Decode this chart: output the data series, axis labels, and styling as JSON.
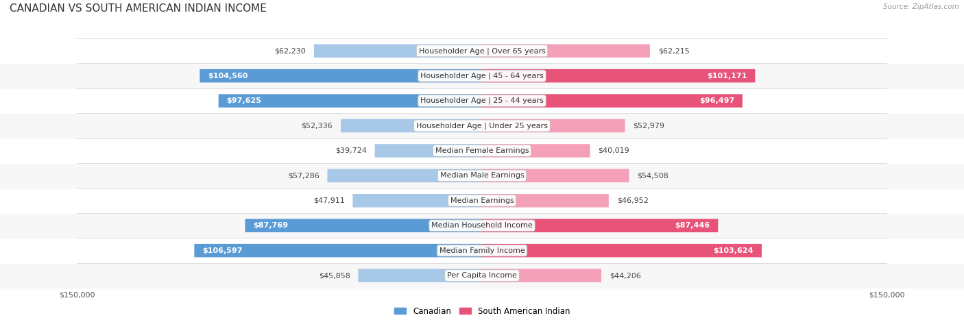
{
  "title": "CANADIAN VS SOUTH AMERICAN INDIAN INCOME",
  "source": "Source: ZipAtlas.com",
  "categories": [
    "Per Capita Income",
    "Median Family Income",
    "Median Household Income",
    "Median Earnings",
    "Median Male Earnings",
    "Median Female Earnings",
    "Householder Age | Under 25 years",
    "Householder Age | 25 - 44 years",
    "Householder Age | 45 - 64 years",
    "Householder Age | Over 65 years"
  ],
  "canadian_values": [
    45858,
    106597,
    87769,
    47911,
    57286,
    39724,
    52336,
    97625,
    104560,
    62230
  ],
  "south_american_values": [
    44206,
    103624,
    87446,
    46952,
    54508,
    40019,
    52979,
    96497,
    101171,
    62215
  ],
  "canadian_labels": [
    "$45,858",
    "$106,597",
    "$87,769",
    "$47,911",
    "$57,286",
    "$39,724",
    "$52,336",
    "$97,625",
    "$104,560",
    "$62,230"
  ],
  "south_american_labels": [
    "$44,206",
    "$103,624",
    "$87,446",
    "$46,952",
    "$54,508",
    "$40,019",
    "$52,979",
    "$96,497",
    "$101,171",
    "$62,215"
  ],
  "canadian_color_light": "#a8c8e8",
  "canadian_color_dark": "#5b9bd5",
  "south_american_color_light": "#f4a0b8",
  "south_american_color_dark": "#e8537a",
  "max_value": 150000,
  "bg_color": "#ffffff",
  "legend_canadian": "Canadian",
  "legend_south_american": "South American Indian",
  "title_fontsize": 11,
  "label_fontsize": 8,
  "axis_label_fontsize": 8,
  "dark_threshold": 80000
}
